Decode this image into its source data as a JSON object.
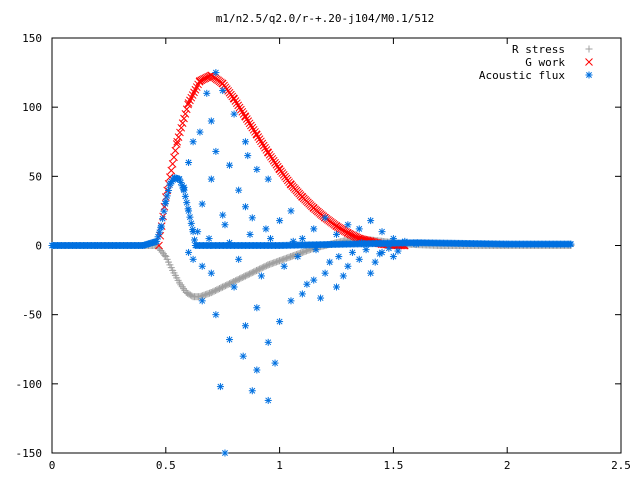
{
  "chart_data": {
    "type": "scatter",
    "title": "m1/n2.5/q2.0/r-+.20-j104/M0.1/512",
    "xlabel": "",
    "ylabel": "",
    "xlim": [
      0,
      2.5
    ],
    "ylim": [
      -150,
      150
    ],
    "x_ticks": [
      0,
      0.5,
      1,
      1.5,
      2,
      2.5
    ],
    "x_tick_labels": [
      "0",
      "0.5",
      "1",
      "1.5",
      "2",
      "2.5"
    ],
    "y_ticks": [
      -150,
      -100,
      -50,
      0,
      50,
      100,
      150
    ],
    "y_tick_labels": [
      "-150",
      "-100",
      "-50",
      "0",
      "50",
      "100",
      "150"
    ],
    "grid": false,
    "legend_position": "top-right",
    "series": [
      {
        "name": "R stress",
        "marker": "plus",
        "color": "#a0a0a0",
        "points": [
          [
            0,
            0
          ],
          [
            0.2,
            0
          ],
          [
            0.4,
            0
          ],
          [
            0.46,
            0
          ],
          [
            0.5,
            -8
          ],
          [
            0.53,
            -18
          ],
          [
            0.56,
            -27
          ],
          [
            0.59,
            -34
          ],
          [
            0.62,
            -37
          ],
          [
            0.65,
            -37
          ],
          [
            0.7,
            -34
          ],
          [
            0.75,
            -30
          ],
          [
            0.8,
            -26
          ],
          [
            0.85,
            -22
          ],
          [
            0.9,
            -18
          ],
          [
            0.95,
            -14
          ],
          [
            1.0,
            -11
          ],
          [
            1.05,
            -8
          ],
          [
            1.1,
            -5
          ],
          [
            1.15,
            -2
          ],
          [
            1.2,
            0
          ],
          [
            1.25,
            2
          ],
          [
            1.3,
            4
          ],
          [
            1.35,
            4
          ],
          [
            1.4,
            4
          ],
          [
            1.45,
            3
          ],
          [
            1.5,
            2
          ],
          [
            1.55,
            1
          ],
          [
            1.7,
            0
          ],
          [
            2.0,
            0
          ],
          [
            2.28,
            0
          ]
        ]
      },
      {
        "name": "G work",
        "marker": "x",
        "color": "#ff0000",
        "points": [
          [
            0.47,
            0
          ],
          [
            0.5,
            35
          ],
          [
            0.55,
            75
          ],
          [
            0.6,
            103
          ],
          [
            0.65,
            119
          ],
          [
            0.7,
            123
          ],
          [
            0.75,
            117
          ],
          [
            0.8,
            106
          ],
          [
            0.85,
            93
          ],
          [
            0.9,
            80
          ],
          [
            0.95,
            67
          ],
          [
            1.0,
            55
          ],
          [
            1.05,
            44
          ],
          [
            1.1,
            35
          ],
          [
            1.15,
            27
          ],
          [
            1.2,
            20
          ],
          [
            1.25,
            14
          ],
          [
            1.3,
            9
          ],
          [
            1.35,
            5
          ],
          [
            1.4,
            3
          ],
          [
            1.45,
            1
          ],
          [
            1.5,
            0
          ],
          [
            1.55,
            0
          ]
        ]
      },
      {
        "name": "Acoustic flux",
        "marker": "star",
        "color": "#0070e0",
        "curve": [
          [
            0,
            0
          ],
          [
            0.2,
            0
          ],
          [
            0.4,
            0
          ],
          [
            0.46,
            3
          ],
          [
            0.48,
            14
          ],
          [
            0.5,
            32
          ],
          [
            0.52,
            45
          ],
          [
            0.54,
            49
          ],
          [
            0.56,
            48
          ],
          [
            0.58,
            40
          ],
          [
            0.6,
            25
          ],
          [
            0.62,
            10
          ],
          [
            0.63,
            0
          ],
          [
            0.7,
            0
          ],
          [
            1.0,
            0
          ],
          [
            1.6,
            2
          ],
          [
            2.0,
            1
          ],
          [
            2.28,
            1
          ]
        ],
        "scatter": [
          [
            0.72,
            125
          ],
          [
            0.75,
            112
          ],
          [
            0.8,
            95
          ],
          [
            0.68,
            110
          ],
          [
            0.65,
            82
          ],
          [
            0.72,
            68
          ],
          [
            0.85,
            75
          ],
          [
            0.78,
            58
          ],
          [
            0.6,
            60
          ],
          [
            0.9,
            55
          ],
          [
            0.7,
            48
          ],
          [
            0.58,
            42
          ],
          [
            0.66,
            30
          ],
          [
            0.75,
            22
          ],
          [
            0.85,
            28
          ],
          [
            0.64,
            10
          ],
          [
            0.69,
            5
          ],
          [
            0.78,
            2
          ],
          [
            0.87,
            8
          ],
          [
            0.94,
            12
          ],
          [
            1.0,
            18
          ],
          [
            1.05,
            25
          ],
          [
            1.1,
            5
          ],
          [
            1.15,
            12
          ],
          [
            1.2,
            20
          ],
          [
            1.25,
            8
          ],
          [
            1.3,
            15
          ],
          [
            1.35,
            12
          ],
          [
            1.4,
            18
          ],
          [
            1.45,
            10
          ],
          [
            1.5,
            5
          ],
          [
            1.55,
            3
          ],
          [
            1.6,
            1
          ],
          [
            0.62,
            -10
          ],
          [
            0.7,
            -20
          ],
          [
            0.66,
            -40
          ],
          [
            0.72,
            -50
          ],
          [
            0.8,
            -30
          ],
          [
            0.85,
            -58
          ],
          [
            0.9,
            -45
          ],
          [
            0.95,
            -70
          ],
          [
            1.0,
            -55
          ],
          [
            1.05,
            -40
          ],
          [
            1.1,
            -35
          ],
          [
            1.15,
            -25
          ],
          [
            1.2,
            -20
          ],
          [
            1.25,
            -30
          ],
          [
            1.3,
            -15
          ],
          [
            1.35,
            -10
          ],
          [
            1.4,
            -20
          ],
          [
            1.45,
            -5
          ],
          [
            1.5,
            -8
          ],
          [
            0.78,
            -68
          ],
          [
            0.84,
            -80
          ],
          [
            0.9,
            -90
          ],
          [
            0.98,
            -85
          ],
          [
            0.74,
            -102
          ],
          [
            0.88,
            -105
          ],
          [
            0.95,
            -112
          ],
          [
            0.76,
            -150
          ],
          [
            1.12,
            -28
          ],
          [
            1.18,
            -38
          ],
          [
            1.22,
            -12
          ],
          [
            1.28,
            -22
          ],
          [
            1.32,
            -5
          ],
          [
            1.38,
            -3
          ],
          [
            1.42,
            -12
          ],
          [
            1.48,
            -2
          ],
          [
            0.6,
            -5
          ],
          [
            0.66,
            -15
          ],
          [
            0.82,
            -10
          ],
          [
            0.92,
            -22
          ],
          [
            1.02,
            -15
          ],
          [
            1.08,
            -8
          ],
          [
            0.76,
            15
          ],
          [
            0.82,
            40
          ],
          [
            0.88,
            20
          ],
          [
            0.96,
            5
          ],
          [
            1.06,
            3
          ],
          [
            1.16,
            -3
          ],
          [
            1.26,
            -8
          ],
          [
            1.36,
            2
          ],
          [
            1.44,
            -6
          ],
          [
            1.52,
            -4
          ],
          [
            0.7,
            90
          ],
          [
            0.62,
            75
          ],
          [
            0.86,
            65
          ],
          [
            0.95,
            48
          ]
        ]
      }
    ]
  }
}
